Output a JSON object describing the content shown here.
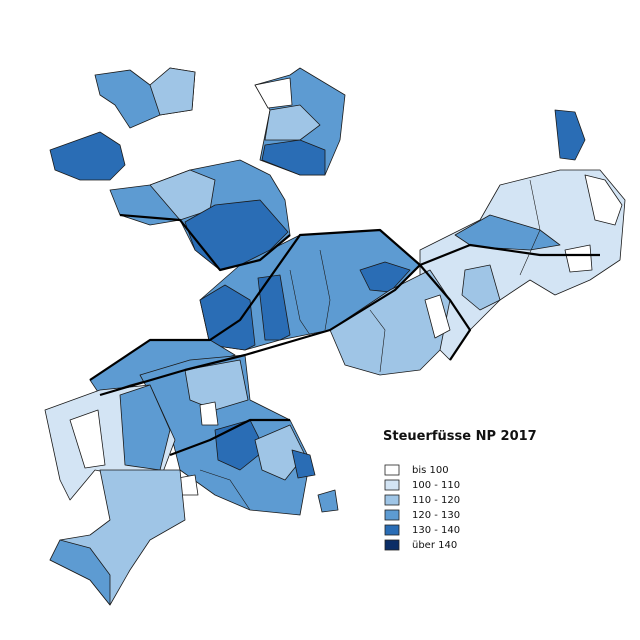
{
  "legend": {
    "title": "Steuerfüsse NP 2017",
    "items": [
      {
        "label": "bis 100",
        "color": "#ffffff"
      },
      {
        "label": "100 - 110",
        "color": "#d3e4f4"
      },
      {
        "label": "110 - 120",
        "color": "#9fc5e6"
      },
      {
        "label": "120 - 130",
        "color": "#5d9bd2"
      },
      {
        "label": "130 - 140",
        "color": "#2a6db5"
      },
      {
        "label": "über 140",
        "color": "#0b2d66"
      }
    ]
  }
}
